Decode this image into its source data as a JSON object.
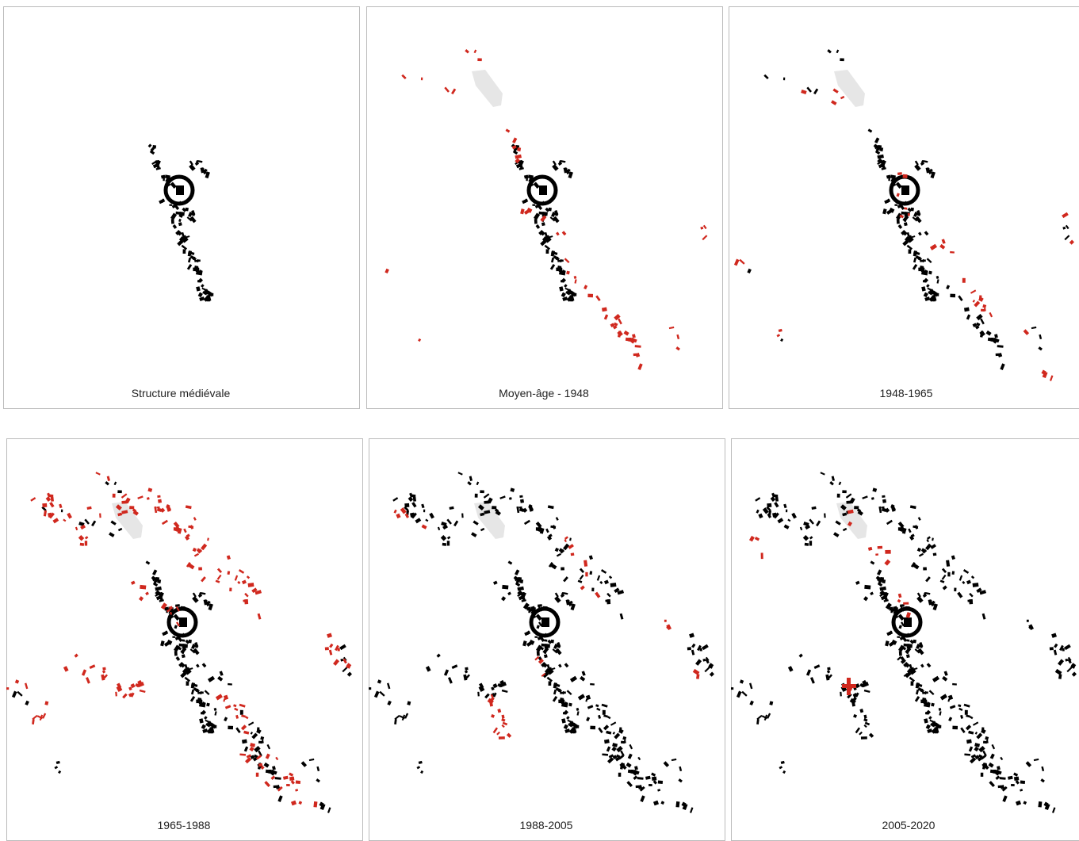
{
  "panels": [
    {
      "caption": "Structure médiévale"
    },
    {
      "caption": "Moyen-âge - 1948"
    },
    {
      "caption": "1948-1965"
    },
    {
      "caption": "1965-1988"
    },
    {
      "caption": "1988-2005"
    },
    {
      "caption": "2005-2020"
    }
  ]
}
